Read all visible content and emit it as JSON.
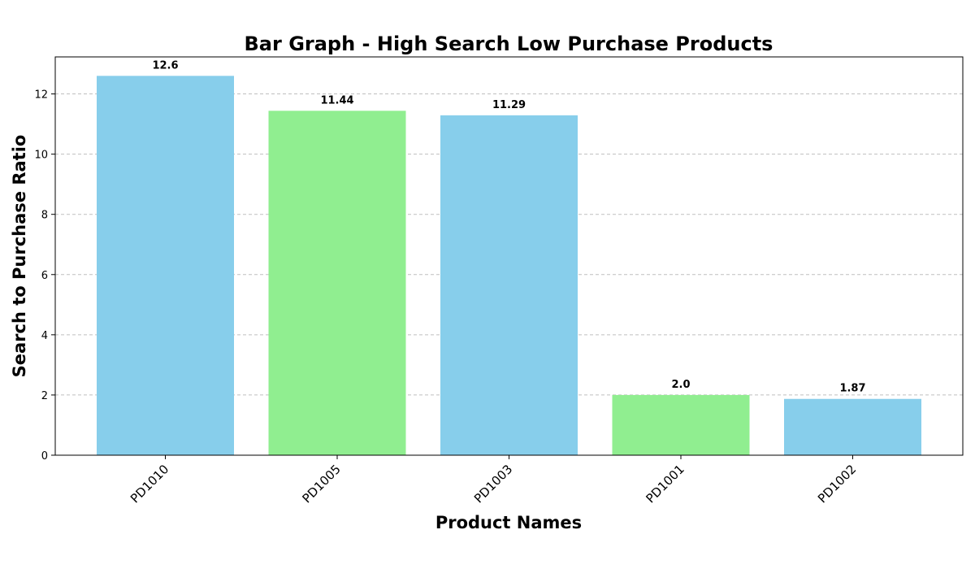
{
  "chart_data": {
    "type": "bar",
    "title": "Bar Graph - High Search Low Purchase Products",
    "xlabel": "Product Names",
    "ylabel": "Search to Purchase Ratio",
    "categories": [
      "PD1010",
      "PD1005",
      "PD1003",
      "PD1001",
      "PD1002"
    ],
    "values": [
      12.6,
      11.44,
      11.29,
      2.0,
      1.87
    ],
    "value_labels": [
      "12.6",
      "11.44",
      "11.29",
      "2.0",
      "1.87"
    ],
    "bar_colors": [
      "#87CEEB",
      "#90EE90",
      "#87CEEB",
      "#90EE90",
      "#87CEEB"
    ],
    "ylim": [
      0,
      13.23
    ],
    "yticks": [
      0,
      2,
      4,
      6,
      8,
      10,
      12
    ],
    "grid": "y-dashed",
    "x_tick_rotation": -45
  }
}
